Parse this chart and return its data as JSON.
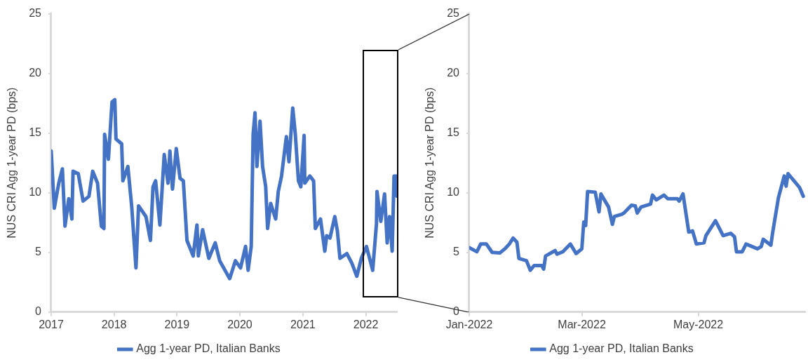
{
  "chart_data": [
    {
      "type": "line",
      "ylabel": "NUS CRI Agg 1-year PD (bps)",
      "legend": "bottom",
      "grid": false,
      "xlim": [
        "2017-01-01",
        "2022-07-01"
      ],
      "ylim": [
        0,
        25
      ],
      "yticks": [
        0,
        5,
        10,
        15,
        20,
        25
      ],
      "xticks": [
        {
          "value": "2017-01-01",
          "label": "2017"
        },
        {
          "value": "2018-01-01",
          "label": "2018"
        },
        {
          "value": "2019-01-01",
          "label": "2019"
        },
        {
          "value": "2020-01-01",
          "label": "2020"
        },
        {
          "value": "2021-01-01",
          "label": "2021"
        },
        {
          "value": "2022-01-01",
          "label": "2022"
        }
      ],
      "series": [
        {
          "name": "Agg 1-year PD, Italian Banks",
          "color": "#4472c4",
          "x": [
            "2017-01-01",
            "2017-01-19",
            "2017-02-14",
            "2017-03-07",
            "2017-03-22",
            "2017-04-13",
            "2017-05-01",
            "2017-05-08",
            "2017-06-07",
            "2017-07-05",
            "2017-08-08",
            "2017-08-30",
            "2017-09-27",
            "2017-10-19",
            "2017-11-03",
            "2017-11-07",
            "2017-11-29",
            "2017-12-20",
            "2018-01-05",
            "2018-01-12",
            "2018-02-14",
            "2018-02-21",
            "2018-03-22",
            "2018-04-13",
            "2018-05-08",
            "2018-05-23",
            "2018-07-05",
            "2018-07-31",
            "2018-08-15",
            "2018-08-30",
            "2018-09-24",
            "2018-10-19",
            "2018-11-10",
            "2018-11-21",
            "2018-12-06",
            "2018-12-28",
            "2019-01-19",
            "2019-02-07",
            "2019-02-28",
            "2019-04-05",
            "2019-04-27",
            "2019-05-05",
            "2019-05-30",
            "2019-07-05",
            "2019-08-11",
            "2019-09-06",
            "2019-11-03",
            "2019-12-06",
            "2020-01-05",
            "2020-02-03",
            "2020-02-18",
            "2020-03-07",
            "2020-03-18",
            "2020-03-29",
            "2020-04-09",
            "2020-04-27",
            "2020-05-12",
            "2020-05-30",
            "2020-06-10",
            "2020-06-28",
            "2020-07-27",
            "2020-08-11",
            "2020-08-30",
            "2020-09-27",
            "2020-10-12",
            "2020-11-03",
            "2020-11-18",
            "2020-12-06",
            "2020-12-20",
            "2021-01-08",
            "2021-01-12",
            "2021-02-10",
            "2021-03-04",
            "2021-03-14",
            "2021-04-13",
            "2021-05-08",
            "2021-05-19",
            "2021-06-07",
            "2021-07-05",
            "2021-07-20",
            "2021-08-04",
            "2021-09-13",
            "2021-10-12",
            "2021-11-10",
            "2021-12-06",
            "2022-01-05",
            "2022-02-10",
            "2022-03-04",
            "2022-03-07",
            "2022-03-29",
            "2022-04-20",
            "2022-05-05",
            "2022-05-19",
            "2022-06-03",
            "2022-06-14",
            "2022-06-28",
            "2022-07-01"
          ],
          "values": [
            13.5,
            8.7,
            10.8,
            12.0,
            7.2,
            9.5,
            7.8,
            11.8,
            11.6,
            9.3,
            9.7,
            11.8,
            10.8,
            7.2,
            7.0,
            14.9,
            12.8,
            17.6,
            17.8,
            14.5,
            14.1,
            11.0,
            12.2,
            8.9,
            3.7,
            8.9,
            8.0,
            6.0,
            10.5,
            11.0,
            7.3,
            13.2,
            10.8,
            13.5,
            10.3,
            13.7,
            11.2,
            11.0,
            6.0,
            4.7,
            7.3,
            4.7,
            6.9,
            4.5,
            5.8,
            4.3,
            2.8,
            4.3,
            3.7,
            5.5,
            3.5,
            5.5,
            14.9,
            16.7,
            12.2,
            16.0,
            12.2,
            10.5,
            7.0,
            9.1,
            7.8,
            10.1,
            11.4,
            14.7,
            12.6,
            17.1,
            14.9,
            11.0,
            10.5,
            14.8,
            10.8,
            11.4,
            11.0,
            7.0,
            7.8,
            5.1,
            6.4,
            6.2,
            8.0,
            6.8,
            4.5,
            4.9,
            4.1,
            3.0,
            4.5,
            5.5,
            3.5,
            7.4,
            10.1,
            7.6,
            9.9,
            5.8,
            8.0,
            5.1,
            11.4,
            11.4,
            9.7
          ]
        }
      ]
    },
    {
      "type": "line",
      "ylabel": "NUS CRI Agg 1-year PD (bps)",
      "legend": "bottom",
      "grid": false,
      "xlim": [
        "2022-01-01",
        "2022-06-26"
      ],
      "ylim": [
        0,
        25
      ],
      "yticks": [
        0,
        5,
        10,
        15,
        20,
        25
      ],
      "xticks": [
        {
          "value": "2022-01-01",
          "label": "Jan-2022"
        },
        {
          "value": "2022-03-01",
          "label": "Mar-2022"
        },
        {
          "value": "2022-05-01",
          "label": "May-2022"
        }
      ],
      "series": [
        {
          "name": "Agg 1-year PD, Italian Banks",
          "color": "#4472c4",
          "x": [
            "2022-01-01",
            "2022-01-05",
            "2022-01-07",
            "2022-01-10",
            "2022-01-13",
            "2022-01-17",
            "2022-01-20",
            "2022-01-22",
            "2022-01-24",
            "2022-01-26",
            "2022-01-27",
            "2022-01-31",
            "2022-02-02",
            "2022-02-04",
            "2022-02-08",
            "2022-02-09",
            "2022-02-10",
            "2022-02-15",
            "2022-02-16",
            "2022-02-19",
            "2022-02-23",
            "2022-02-26",
            "2022-03-01",
            "2022-03-02",
            "2022-03-03",
            "2022-03-04",
            "2022-03-08",
            "2022-03-10",
            "2022-03-11",
            "2022-03-15",
            "2022-03-17",
            "2022-03-18",
            "2022-03-22",
            "2022-03-23",
            "2022-03-27",
            "2022-03-29",
            "2022-03-30",
            "2022-04-01",
            "2022-04-06",
            "2022-04-07",
            "2022-04-09",
            "2022-04-13",
            "2022-04-15",
            "2022-04-20",
            "2022-04-21",
            "2022-04-23",
            "2022-04-26",
            "2022-04-28",
            "2022-04-30",
            "2022-05-04",
            "2022-05-05",
            "2022-05-10",
            "2022-05-14",
            "2022-05-18",
            "2022-05-20",
            "2022-05-21",
            "2022-05-24",
            "2022-05-26",
            "2022-06-01",
            "2022-06-03",
            "2022-06-04",
            "2022-06-08",
            "2022-06-09",
            "2022-06-12",
            "2022-06-15",
            "2022-06-16",
            "2022-06-17",
            "2022-06-23",
            "2022-06-25"
          ],
          "values": [
            5.4,
            5.05,
            5.7,
            5.7,
            5.0,
            4.95,
            5.35,
            5.7,
            6.2,
            5.85,
            4.5,
            4.3,
            3.5,
            3.9,
            3.9,
            3.6,
            4.7,
            5.15,
            4.85,
            5.05,
            5.7,
            4.9,
            5.3,
            7.55,
            7.25,
            10.1,
            10.05,
            8.4,
            9.9,
            8.8,
            7.35,
            8.0,
            8.2,
            8.3,
            8.95,
            8.9,
            8.3,
            8.8,
            9.05,
            9.8,
            9.4,
            9.8,
            9.5,
            9.5,
            9.3,
            9.9,
            6.7,
            6.8,
            5.7,
            5.8,
            6.4,
            7.65,
            6.4,
            6.6,
            6.3,
            5.05,
            5.05,
            5.7,
            5.3,
            5.5,
            6.1,
            5.6,
            6.7,
            9.6,
            11.4,
            10.55,
            11.6,
            10.45,
            9.7
          ]
        }
      ]
    }
  ]
}
